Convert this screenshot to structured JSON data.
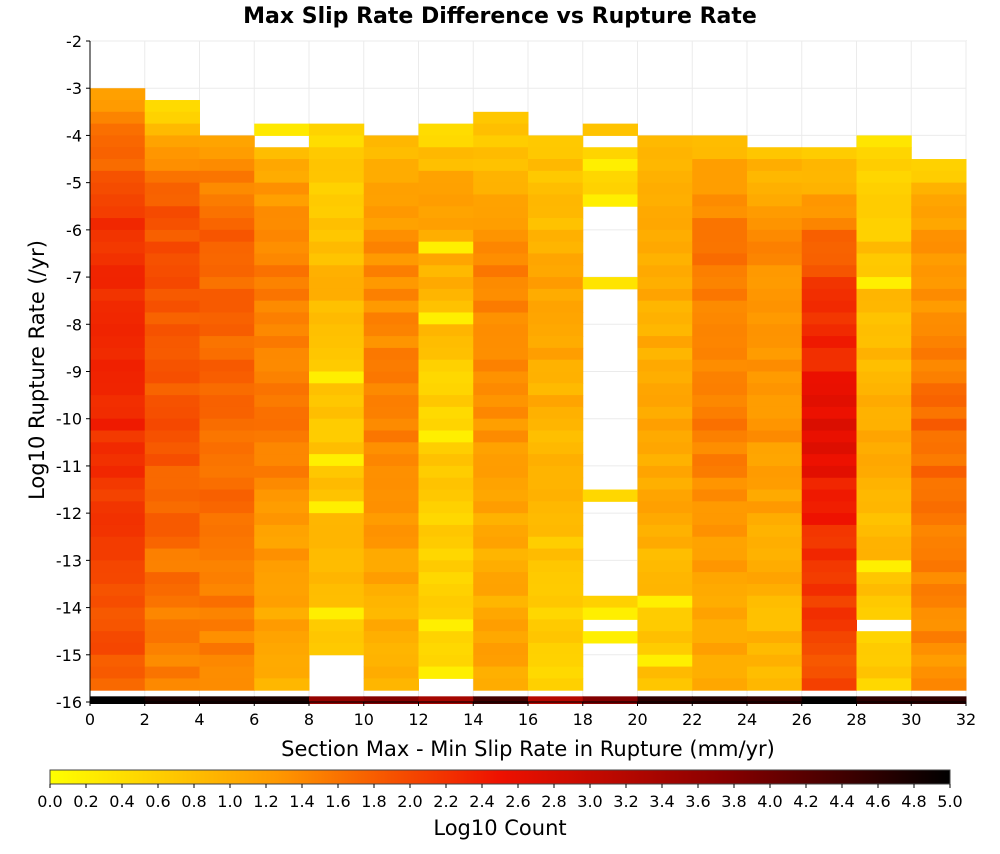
{
  "chart_data": {
    "type": "heatmap",
    "title": "Max Slip Rate Difference vs Rupture Rate",
    "xlabel": "Section Max - Min Slip Rate in Rupture (mm/yr)",
    "ylabel": "Log10 Rupture Rate (/yr)",
    "xlim": [
      0,
      32
    ],
    "ylim": [
      -16,
      -2
    ],
    "x_ticks": [
      "0",
      "2",
      "4",
      "6",
      "8",
      "10",
      "12",
      "14",
      "16",
      "18",
      "20",
      "22",
      "24",
      "26",
      "28",
      "30",
      "32"
    ],
    "y_ticks": [
      "-2",
      "-3",
      "-4",
      "-5",
      "-6",
      "-7",
      "-8",
      "-9",
      "-10",
      "-11",
      "-12",
      "-13",
      "-14",
      "-15",
      "-16"
    ],
    "x_bin_width": 2,
    "y_bin_height": 0.25,
    "grid": true,
    "colorbar": {
      "label": "Log10 Count",
      "range": [
        0.0,
        5.0
      ],
      "ticks": [
        "0.0",
        "0.2",
        "0.4",
        "0.6",
        "0.8",
        "1.0",
        "1.2",
        "1.4",
        "1.6",
        "1.8",
        "2.0",
        "2.2",
        "2.4",
        "2.6",
        "2.8",
        "3.0",
        "3.2",
        "3.4",
        "3.6",
        "3.8",
        "4.0",
        "4.2",
        "4.4",
        "4.6",
        "4.8",
        "5.0"
      ],
      "colors": [
        "#ffff00",
        "#ff9900",
        "#ee1100",
        "#880000",
        "#000000"
      ]
    },
    "columns": [
      {
        "x": 1,
        "ytop": -3.0,
        "ybot": -16.0,
        "profile": [
          [
            -3,
            1.2
          ],
          [
            -4,
            1.6
          ],
          [
            -5,
            2.0
          ],
          [
            -6,
            2.3
          ],
          [
            -8,
            2.2
          ],
          [
            -10,
            2.3
          ],
          [
            -12,
            2.1
          ],
          [
            -14,
            1.9
          ],
          [
            -16,
            1.8
          ]
        ],
        "gaps": [],
        "bright": []
      },
      {
        "x": 3,
        "ytop": -3.25,
        "ybot": -16.0,
        "profile": [
          [
            -3.25,
            0.4
          ],
          [
            -4,
            1.0
          ],
          [
            -5,
            1.8
          ],
          [
            -6,
            1.9
          ],
          [
            -8,
            1.8
          ],
          [
            -10,
            1.9
          ],
          [
            -12,
            1.7
          ],
          [
            -14,
            1.5
          ],
          [
            -16,
            1.4
          ]
        ],
        "gaps": [],
        "bright": []
      },
      {
        "x": 5,
        "ytop": -4.0,
        "ybot": -16.0,
        "profile": [
          [
            -4,
            1.2
          ],
          [
            -5,
            1.5
          ],
          [
            -6,
            1.8
          ],
          [
            -8,
            1.7
          ],
          [
            -10,
            1.7
          ],
          [
            -12,
            1.6
          ],
          [
            -14,
            1.5
          ],
          [
            -16,
            1.4
          ]
        ],
        "gaps": [],
        "bright": []
      },
      {
        "x": 7,
        "ytop": -3.75,
        "ybot": -16.0,
        "profile": [
          [
            -3.75,
            0.3
          ],
          [
            -4.5,
            1.1
          ],
          [
            -6,
            1.5
          ],
          [
            -8,
            1.4
          ],
          [
            -10,
            1.5
          ],
          [
            -12,
            1.3
          ],
          [
            -14,
            1.1
          ],
          [
            -16,
            1.0
          ]
        ],
        "gaps": [
          [
            -4.25,
            -4.0
          ]
        ],
        "bright": []
      },
      {
        "x": 9,
        "ytop": -3.75,
        "ybot": -15.0,
        "profile": [
          [
            -3.75,
            0.5
          ],
          [
            -5,
            0.7
          ],
          [
            -7,
            0.9
          ],
          [
            -9,
            0.7
          ],
          [
            -11,
            0.8
          ],
          [
            -13,
            0.8
          ],
          [
            -15,
            0.6
          ]
        ],
        "gaps": [],
        "bright": [
          -9.0,
          -10.75,
          -11.75,
          -14.0
        ]
      },
      {
        "x": 11,
        "ytop": -4.0,
        "ybot": -16.0,
        "profile": [
          [
            -4,
            0.8
          ],
          [
            -6,
            1.3
          ],
          [
            -8,
            1.4
          ],
          [
            -10,
            1.5
          ],
          [
            -12,
            1.2
          ],
          [
            -14,
            1.0
          ],
          [
            -16,
            0.9
          ]
        ],
        "gaps": [],
        "bright": []
      },
      {
        "x": 13,
        "ytop": -3.75,
        "ybot": -16.0,
        "profile": [
          [
            -3.75,
            0.4
          ],
          [
            -5,
            1.2
          ],
          [
            -7,
            0.9
          ],
          [
            -9,
            0.6
          ],
          [
            -11,
            0.6
          ],
          [
            -13,
            0.6
          ],
          [
            -15,
            0.5
          ],
          [
            -16,
            0.6
          ]
        ],
        "gaps": [
          [
            -15.75,
            -15.5
          ]
        ],
        "bright": [
          -6.25,
          -7.75,
          -10.25,
          -14.25,
          -15.25
        ]
      },
      {
        "x": 15,
        "ytop": -3.5,
        "ybot": -16.0,
        "profile": [
          [
            -3.5,
            0.6
          ],
          [
            -5,
            1.0
          ],
          [
            -7,
            1.5
          ],
          [
            -9,
            1.3
          ],
          [
            -11,
            1.2
          ],
          [
            -13,
            1.0
          ],
          [
            -15,
            1.1
          ],
          [
            -16,
            1.0
          ]
        ],
        "gaps": [],
        "bright": []
      },
      {
        "x": 17,
        "ytop": -4.0,
        "ybot": -16.0,
        "profile": [
          [
            -4,
            0.8
          ],
          [
            -5,
            0.7
          ],
          [
            -7,
            1.2
          ],
          [
            -9,
            1.0
          ],
          [
            -11,
            0.9
          ],
          [
            -13,
            0.7
          ],
          [
            -15,
            0.6
          ],
          [
            -16,
            0.6
          ]
        ],
        "gaps": [],
        "bright": []
      },
      {
        "x": 19,
        "ytop": -3.75,
        "ybot": -16.0,
        "profile": [
          [
            -3.75,
            0.6
          ],
          [
            -5,
            0.4
          ],
          [
            -16,
            0.5
          ]
        ],
        "gaps": [
          [
            -4.25,
            -4.0
          ],
          [
            -11.5,
            -7.25
          ],
          [
            -7.0,
            -5.5
          ],
          [
            -13.75,
            -11.75
          ],
          [
            -14.5,
            -14.25
          ],
          [
            -15.75,
            -14.75
          ]
        ],
        "bright": [
          -4.5,
          -5.25,
          -11.75,
          -14.0,
          -14.5
        ]
      },
      {
        "x": 21,
        "ytop": -4.0,
        "ybot": -16.0,
        "profile": [
          [
            -4,
            0.8
          ],
          [
            -6,
            1.1
          ],
          [
            -8,
            1.0
          ],
          [
            -10,
            1.1
          ],
          [
            -12,
            1.0
          ],
          [
            -14,
            0.7
          ],
          [
            -16,
            0.8
          ]
        ],
        "gaps": [],
        "bright": [
          -13.75,
          -15.0
        ]
      },
      {
        "x": 23,
        "ytop": -4.0,
        "ybot": -16.0,
        "profile": [
          [
            -4,
            0.9
          ],
          [
            -6,
            1.6
          ],
          [
            -8,
            1.5
          ],
          [
            -10,
            1.5
          ],
          [
            -12,
            1.3
          ],
          [
            -14,
            1.1
          ],
          [
            -16,
            1.0
          ]
        ],
        "gaps": [],
        "bright": []
      },
      {
        "x": 25,
        "ytop": -4.25,
        "ybot": -16.0,
        "profile": [
          [
            -4.25,
            0.8
          ],
          [
            -6,
            1.4
          ],
          [
            -8,
            1.3
          ],
          [
            -10,
            1.3
          ],
          [
            -12,
            1.1
          ],
          [
            -14,
            0.9
          ],
          [
            -16,
            0.8
          ]
        ],
        "gaps": [],
        "bright": []
      },
      {
        "x": 27,
        "ytop": -4.25,
        "ybot": -16.0,
        "profile": [
          [
            -4.25,
            0.6
          ],
          [
            -6,
            1.7
          ],
          [
            -7,
            2.1
          ],
          [
            -9,
            2.4
          ],
          [
            -10,
            2.6
          ],
          [
            -11,
            2.5
          ],
          [
            -13,
            2.2
          ],
          [
            -15,
            2.0
          ],
          [
            -16,
            2.1
          ]
        ],
        "gaps": [],
        "bright": []
      },
      {
        "x": 29,
        "ytop": -4.0,
        "ybot": -16.0,
        "profile": [
          [
            -4,
            0.4
          ],
          [
            -6,
            0.7
          ],
          [
            -8,
            0.9
          ],
          [
            -10,
            1.0
          ],
          [
            -12,
            0.9
          ],
          [
            -14,
            0.7
          ],
          [
            -16,
            0.6
          ]
        ],
        "gaps": [
          [
            -14.5,
            -14.25
          ]
        ],
        "bright": [
          -7.0,
          -13.0
        ]
      },
      {
        "x": 31,
        "ytop": -4.5,
        "ybot": -16.0,
        "profile": [
          [
            -4.5,
            0.5
          ],
          [
            -5.5,
            1.2
          ],
          [
            -7,
            1.3
          ],
          [
            -9,
            1.5
          ],
          [
            -10,
            1.7
          ],
          [
            -12,
            1.6
          ],
          [
            -14,
            1.4
          ],
          [
            -16,
            1.3
          ]
        ],
        "gaps": [],
        "bright": []
      }
    ],
    "bottom_row": {
      "y": -16.0,
      "values_by_x": [
        5.0,
        4.8,
        4.8,
        4.8,
        3.6,
        3.8,
        3.4,
        4.4,
        3.2,
        3.8,
        4.6,
        4.7,
        4.6,
        5.0,
        4.6,
        4.6
      ]
    }
  }
}
